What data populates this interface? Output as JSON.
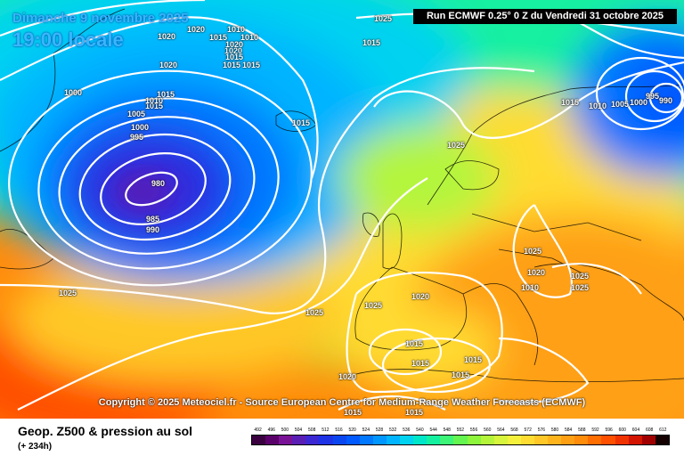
{
  "header": {
    "date": "Dimanche 9 novembre 2025",
    "time": "19:00 locale",
    "run": "Run ECMWF 0.25° 0 Z du Vendredi 31 octobre 2025"
  },
  "copyright": "Copyright © 2025 Meteociel.fr - Source European Centre for Medium-Range Weather Forecasts (ECMWF)",
  "legend": {
    "title": "Geop. Z500 & pression au sol",
    "subtitle": "(+ 234h)",
    "scale_values": [
      "492",
      "496",
      "500",
      "504",
      "508",
      "512",
      "516",
      "520",
      "524",
      "528",
      "532",
      "536",
      "540",
      "544",
      "548",
      "552",
      "556",
      "560",
      "564",
      "568",
      "572",
      "576",
      "580",
      "584",
      "588",
      "592",
      "596",
      "600",
      "604",
      "608",
      "612"
    ],
    "scale_colors": [
      "#3a0040",
      "#5a006a",
      "#7a1296",
      "#5a1eb4",
      "#3c28d2",
      "#1e32e6",
      "#0a46f0",
      "#005aff",
      "#0078ff",
      "#0096ff",
      "#00b4ff",
      "#00d2f0",
      "#00e6c8",
      "#14f0a0",
      "#3cf578",
      "#64f550",
      "#8cf53c",
      "#b4f53c",
      "#d7f53c",
      "#f5f03c",
      "#ffdc32",
      "#ffc828",
      "#ffb41e",
      "#ffa014",
      "#ff8c0a",
      "#ff6e00",
      "#ff5000",
      "#f03200",
      "#d21400",
      "#a00000",
      "#140000"
    ]
  },
  "isobar_labels": [
    {
      "text": "1020"
    },
    {
      "text": "1020"
    },
    {
      "text": "1010"
    },
    {
      "text": "1015"
    },
    {
      "text": "1010"
    },
    {
      "text": "1020"
    },
    {
      "text": "1015"
    },
    {
      "text": "1015"
    },
    {
      "text": "1020"
    },
    {
      "text": "1015"
    },
    {
      "text": "1000"
    },
    {
      "text": "1015"
    },
    {
      "text": "1010"
    },
    {
      "text": "1005"
    },
    {
      "text": "1000"
    },
    {
      "text": "995"
    },
    {
      "text": "980"
    },
    {
      "text": "985"
    },
    {
      "text": "990"
    },
    {
      "text": "1015"
    },
    {
      "text": "1015"
    },
    {
      "text": "1025"
    },
    {
      "text": "1020"
    },
    {
      "text": "1015"
    },
    {
      "text": "1010"
    },
    {
      "text": "1005"
    },
    {
      "text": "1000"
    },
    {
      "text": "995"
    },
    {
      "text": "990"
    },
    {
      "text": "1015"
    },
    {
      "text": "1025"
    },
    {
      "text": "1025"
    },
    {
      "text": "1025"
    },
    {
      "text": "1025"
    },
    {
      "text": "1025"
    },
    {
      "text": "1020"
    },
    {
      "text": "1025"
    },
    {
      "text": "1025"
    },
    {
      "text": "1015"
    },
    {
      "text": "1015"
    },
    {
      "text": "1015"
    },
    {
      "text": "1015"
    },
    {
      "text": "1020"
    },
    {
      "text": "1015"
    },
    {
      "text": "1015"
    },
    {
      "text": "1020"
    },
    {
      "text": "1010"
    }
  ]
}
